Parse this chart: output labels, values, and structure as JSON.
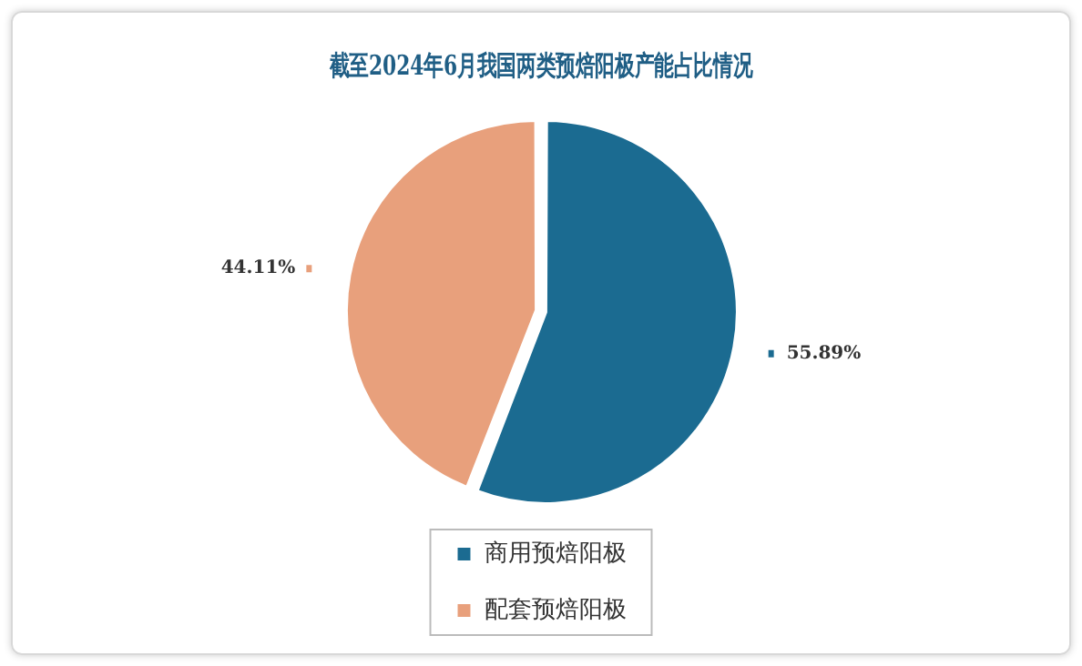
{
  "chart_data": {
    "type": "pie",
    "title": "截至2024年6月我国两类预焙阳极产能占比情况",
    "categories": [
      "商用预焙阳极",
      "配套预焙阳极"
    ],
    "values": [
      55.89,
      44.11
    ],
    "colors": [
      "#1b6b91",
      "#e8a07c"
    ],
    "value_labels": [
      "55.89%",
      "44.11%"
    ],
    "legend": "bottom"
  }
}
